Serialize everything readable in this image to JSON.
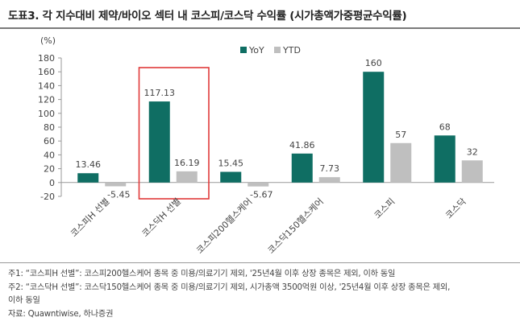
{
  "title": "도표3. 각 지수대비 제약/바이오 섹터 내 코스피/코스닥 수익률 (시가총액가중평균수익률)",
  "chart_data": {
    "type": "bar",
    "unit_label": "(%)",
    "categories": [
      "코스피H 선별",
      "코스닥H 선별",
      "코스피200헬스케어",
      "코스닥150헬스케어",
      "코스피",
      "코스닥"
    ],
    "series": [
      {
        "name": "YoY",
        "color": "#0f6e63",
        "values": [
          13.46,
          117.13,
          15.45,
          41.86,
          160,
          68
        ]
      },
      {
        "name": "YTD",
        "color": "#bfbfbf",
        "values": [
          -5.45,
          16.19,
          -5.67,
          7.73,
          57,
          32
        ]
      }
    ],
    "value_labels": {
      "YoY": [
        "13.46",
        "117.13",
        "15.45",
        "41.86",
        "160",
        "68"
      ],
      "YTD": [
        "-5.45",
        "16.19",
        "-5.67",
        "7.73",
        "57",
        "32"
      ]
    },
    "yticks": [
      -20,
      0,
      20,
      40,
      60,
      80,
      100,
      120,
      140,
      160,
      180
    ],
    "ylim": [
      -20,
      180
    ],
    "legend_position": "top-center",
    "highlight": {
      "category_index": 1,
      "color": "#e03a3a"
    }
  },
  "notes": [
    "주1: “코스피H 선별”: 코스피200헬스케어 종목 중 미용/의료기기 제외, '25년4월 이후 상장 종목은 제외, 이하 동일",
    "주2: “코스닥H 선별”: 코스닥150헬스케어 종목 중 미용/의료기기 제외, 시가총액 3500억원 이상, '25년4월 이후 상장 종목은 제외,",
    "이하 동일",
    "자료: Quawntiwise, 하나증권"
  ]
}
